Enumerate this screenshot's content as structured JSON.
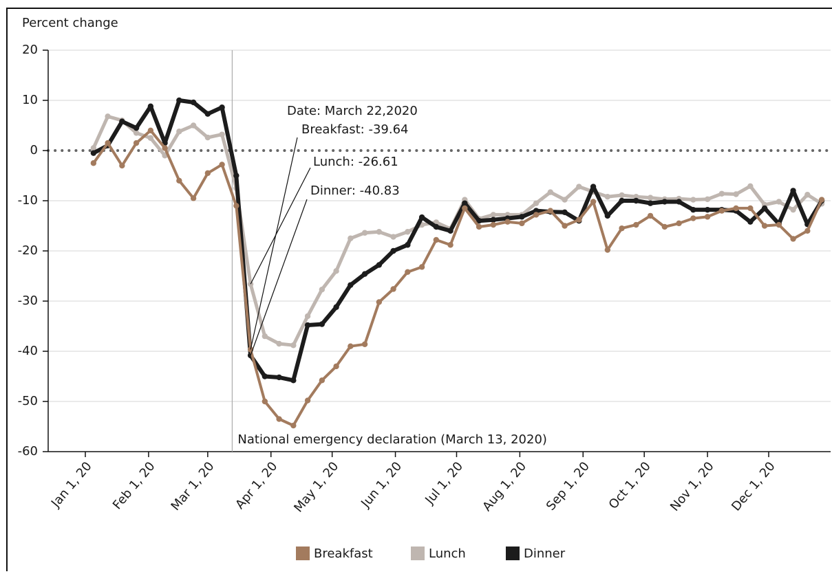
{
  "chart_data": {
    "type": "line",
    "y_axis_label": "Percent change",
    "x": [
      "2020-01-05",
      "2020-01-12",
      "2020-01-19",
      "2020-01-26",
      "2020-02-02",
      "2020-02-09",
      "2020-02-16",
      "2020-02-23",
      "2020-03-01",
      "2020-03-08",
      "2020-03-15",
      "2020-03-22",
      "2020-03-29",
      "2020-04-05",
      "2020-04-12",
      "2020-04-19",
      "2020-04-26",
      "2020-05-03",
      "2020-05-10",
      "2020-05-17",
      "2020-05-24",
      "2020-05-31",
      "2020-06-07",
      "2020-06-14",
      "2020-06-21",
      "2020-06-28",
      "2020-07-05",
      "2020-07-12",
      "2020-07-19",
      "2020-07-26",
      "2020-08-02",
      "2020-08-09",
      "2020-08-16",
      "2020-08-23",
      "2020-08-30",
      "2020-09-06",
      "2020-09-13",
      "2020-09-20",
      "2020-09-27",
      "2020-10-04",
      "2020-10-11",
      "2020-10-18",
      "2020-10-25",
      "2020-11-01",
      "2020-11-08",
      "2020-11-15",
      "2020-11-22",
      "2020-11-29",
      "2020-12-06",
      "2020-12-13",
      "2020-12-20",
      "2020-12-27"
    ],
    "series": [
      {
        "name": "Breakfast",
        "color": "#a37b5e",
        "values": [
          -2.5,
          1.5,
          -3,
          1.5,
          4,
          0.5,
          -6,
          -9.5,
          -4.5,
          -2.8,
          -11,
          -39.64,
          -50,
          -53.5,
          -54.8,
          -49.8,
          -45.8,
          -43,
          -39,
          -38.6,
          -30.2,
          -27.6,
          -24.2,
          -23.2,
          -17.8,
          -18.8,
          -11.5,
          -15.2,
          -14.8,
          -14.2,
          -14.5,
          -12.8,
          -12,
          -15,
          -13.8,
          -10.2,
          -19.8,
          -15.5,
          -14.8,
          -13,
          -15.2,
          -14.5,
          -13.5,
          -13.2,
          -12,
          -11.5,
          -11.5,
          -15,
          -14.8,
          -17.6,
          -16,
          -9.8
        ]
      },
      {
        "name": "Lunch",
        "color": "#bfb6b0",
        "values": [
          0.5,
          6.8,
          6,
          3.5,
          2.5,
          -1,
          3.8,
          5,
          2.6,
          3.2,
          -7.5,
          -26.61,
          -37,
          -38.5,
          -38.8,
          -33,
          -27.7,
          -24,
          -17.5,
          -16.4,
          -16.2,
          -17.2,
          -16.2,
          -14.8,
          -14.3,
          -15.6,
          -9.8,
          -13.6,
          -12.8,
          -12.8,
          -12.8,
          -10.5,
          -8.3,
          -9.8,
          -7.2,
          -8.2,
          -9.2,
          -8.9,
          -9.2,
          -9.4,
          -9.7,
          -9.6,
          -9.8,
          -9.7,
          -8.6,
          -8.7,
          -7.1,
          -10.8,
          -10.2,
          -11.8,
          -8.8,
          -10.6
        ]
      },
      {
        "name": "Dinner",
        "color": "#1c1c1c",
        "values": [
          -0.5,
          1,
          5.8,
          4.5,
          8.8,
          1.5,
          10,
          9.6,
          7.3,
          8.6,
          -5,
          -40.83,
          -45,
          -45.2,
          -45.8,
          -34.8,
          -34.6,
          -31.2,
          -26.8,
          -24.6,
          -22.8,
          -20,
          -18.8,
          -13.3,
          -15.2,
          -16,
          -10.5,
          -14,
          -13.8,
          -13.5,
          -13.2,
          -12,
          -12.2,
          -12.3,
          -14,
          -7.2,
          -13,
          -10,
          -10,
          -10.5,
          -10.2,
          -10.2,
          -11.8,
          -11.8,
          -11.8,
          -12,
          -14.2,
          -11.5,
          -14.6,
          -8,
          -14.7,
          -10
        ]
      }
    ],
    "ylim": [
      -60,
      20
    ],
    "yticks": [
      20,
      10,
      0,
      -10,
      -20,
      -30,
      -40,
      -50,
      -60
    ],
    "xticks": [
      {
        "value": "2020-01-01",
        "label": "Jan 1, 20"
      },
      {
        "value": "2020-02-01",
        "label": "Feb 1, 20"
      },
      {
        "value": "2020-03-01",
        "label": "Mar 1, 20"
      },
      {
        "value": "2020-04-01",
        "label": "Apr 1, 20"
      },
      {
        "value": "2020-05-01",
        "label": "May 1, 20"
      },
      {
        "value": "2020-06-01",
        "label": "Jun 1, 20"
      },
      {
        "value": "2020-07-01",
        "label": "Jul 1, 20"
      },
      {
        "value": "2020-08-01",
        "label": "Aug 1, 20"
      },
      {
        "value": "2020-09-01",
        "label": "Sep 1, 20"
      },
      {
        "value": "2020-10-01",
        "label": "Oct 1, 20"
      },
      {
        "value": "2020-11-01",
        "label": "Nov 1, 20"
      },
      {
        "value": "2020-12-01",
        "label": "Dec 1, 20"
      }
    ],
    "grid": true,
    "reference_line": {
      "x": "2020-03-13",
      "label": "National emergency declaration (March 13, 2020)"
    },
    "tooltip": {
      "x": "2020-03-22",
      "title": "Date: March 22,2020",
      "lines": [
        "Breakfast: -39.64",
        "Lunch: -26.61",
        "Dinner: -40.83"
      ]
    },
    "legend": "bottom"
  }
}
